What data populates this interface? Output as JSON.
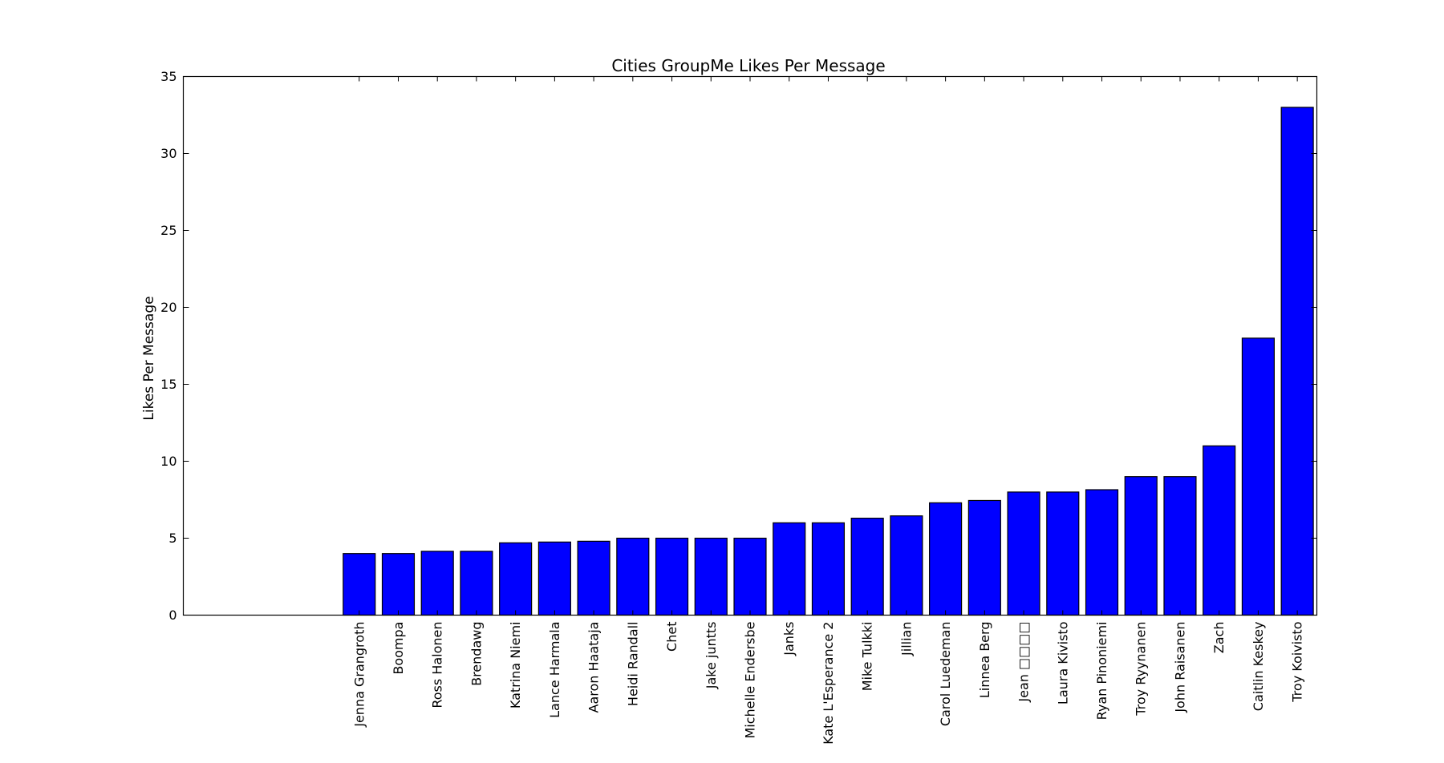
{
  "chart_data": {
    "type": "bar",
    "title": "Cities GroupMe Likes Per Message",
    "xlabel": "",
    "ylabel": "Likes Per Message",
    "ylim": [
      0,
      35
    ],
    "yticks": [
      0,
      5,
      10,
      15,
      20,
      25,
      30,
      35
    ],
    "ytick_labels": [
      "0",
      "5",
      "10",
      "15",
      "20",
      "25",
      "30",
      "35"
    ],
    "grid": false,
    "legend": "none",
    "bar_color": "#0000ff",
    "edge_color": "#000000",
    "leading_empty_slots": 4,
    "categories": [
      "Jenna Grangroth",
      "Boompa",
      "Ross Halonen",
      "Brendawg",
      "Katrina Niemi",
      "Lance Harmala",
      "Aaron Haataja",
      "Heidi Randall",
      "Chet",
      "Jake juntts",
      "Michelle Endersbe",
      "Janks",
      "Kate L'Esperance 2",
      "Mike Tulkki",
      "Jillian",
      "Carol Luedeman",
      "Linnea Berg",
      "Jean □□□□",
      "Laura Kivisto",
      "Ryan Pinoniemi",
      "Troy Ryynanen",
      "John Raisanen",
      "Zach",
      "Caitlin Keskey",
      "Troy Koivisto"
    ],
    "values": [
      4.0,
      4.0,
      4.15,
      4.15,
      4.7,
      4.75,
      4.8,
      5.0,
      5.0,
      5.0,
      5.0,
      6.0,
      6.0,
      6.3,
      6.45,
      7.3,
      7.45,
      8.0,
      8.0,
      8.15,
      9.0,
      9.0,
      11.0,
      18.0,
      33.0
    ]
  }
}
